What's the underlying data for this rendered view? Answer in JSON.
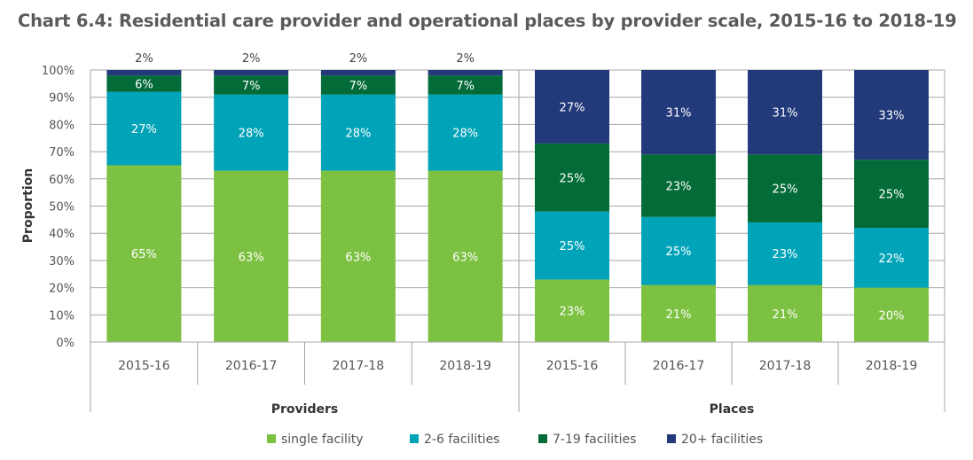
{
  "chart_data": {
    "type": "bar",
    "stacked": true,
    "title": "Chart 6.4: Residential care provider and operational places by provider scale, 2015-16 to 2018-19",
    "ylabel": "Proportion",
    "xlabel": "",
    "ylim": [
      0,
      100
    ],
    "yticks": [
      "0%",
      "10%",
      "20%",
      "30%",
      "40%",
      "50%",
      "60%",
      "70%",
      "80%",
      "90%",
      "100%"
    ],
    "grid": true,
    "legend_position": "bottom",
    "categories": [
      "2015-16",
      "2016-17",
      "2017-18",
      "2018-19"
    ],
    "series_meta": [
      {
        "name": "single facility",
        "color": "#7dc142"
      },
      {
        "name": "2-6 facilities",
        "color": "#00a3b8"
      },
      {
        "name": "7-19 facilities",
        "color": "#036b38"
      },
      {
        "name": "20+ facilities",
        "color": "#233a7a"
      }
    ],
    "groups": [
      {
        "name": "Providers",
        "series": [
          {
            "name": "single facility",
            "values": [
              65,
              63,
              63,
              63
            ],
            "labels": [
              "65%",
              "63%",
              "63%",
              "63%"
            ]
          },
          {
            "name": "2-6 facilities",
            "values": [
              27,
              28,
              28,
              28
            ],
            "labels": [
              "27%",
              "28%",
              "28%",
              "28%"
            ]
          },
          {
            "name": "7-19 facilities",
            "values": [
              6,
              7,
              7,
              7
            ],
            "labels": [
              "6%",
              "7%",
              "7%",
              "7%"
            ]
          },
          {
            "name": "20+ facilities",
            "values": [
              2,
              2,
              2,
              2
            ],
            "labels": [
              "2%",
              "2%",
              "2%",
              "2%"
            ],
            "label_above": true
          }
        ]
      },
      {
        "name": "Places",
        "series": [
          {
            "name": "single facility",
            "values": [
              23,
              21,
              21,
              20
            ],
            "labels": [
              "23%",
              "21%",
              "21%",
              "20%"
            ]
          },
          {
            "name": "2-6 facilities",
            "values": [
              25,
              25,
              23,
              22
            ],
            "labels": [
              "25%",
              "25%",
              "23%",
              "22%"
            ]
          },
          {
            "name": "7-19 facilities",
            "values": [
              25,
              23,
              25,
              25
            ],
            "labels": [
              "25%",
              "23%",
              "25%",
              "25%"
            ]
          },
          {
            "name": "20+ facilities",
            "values": [
              27,
              31,
              31,
              33
            ],
            "labels": [
              "27%",
              "31%",
              "31%",
              "33%"
            ]
          }
        ]
      }
    ]
  }
}
